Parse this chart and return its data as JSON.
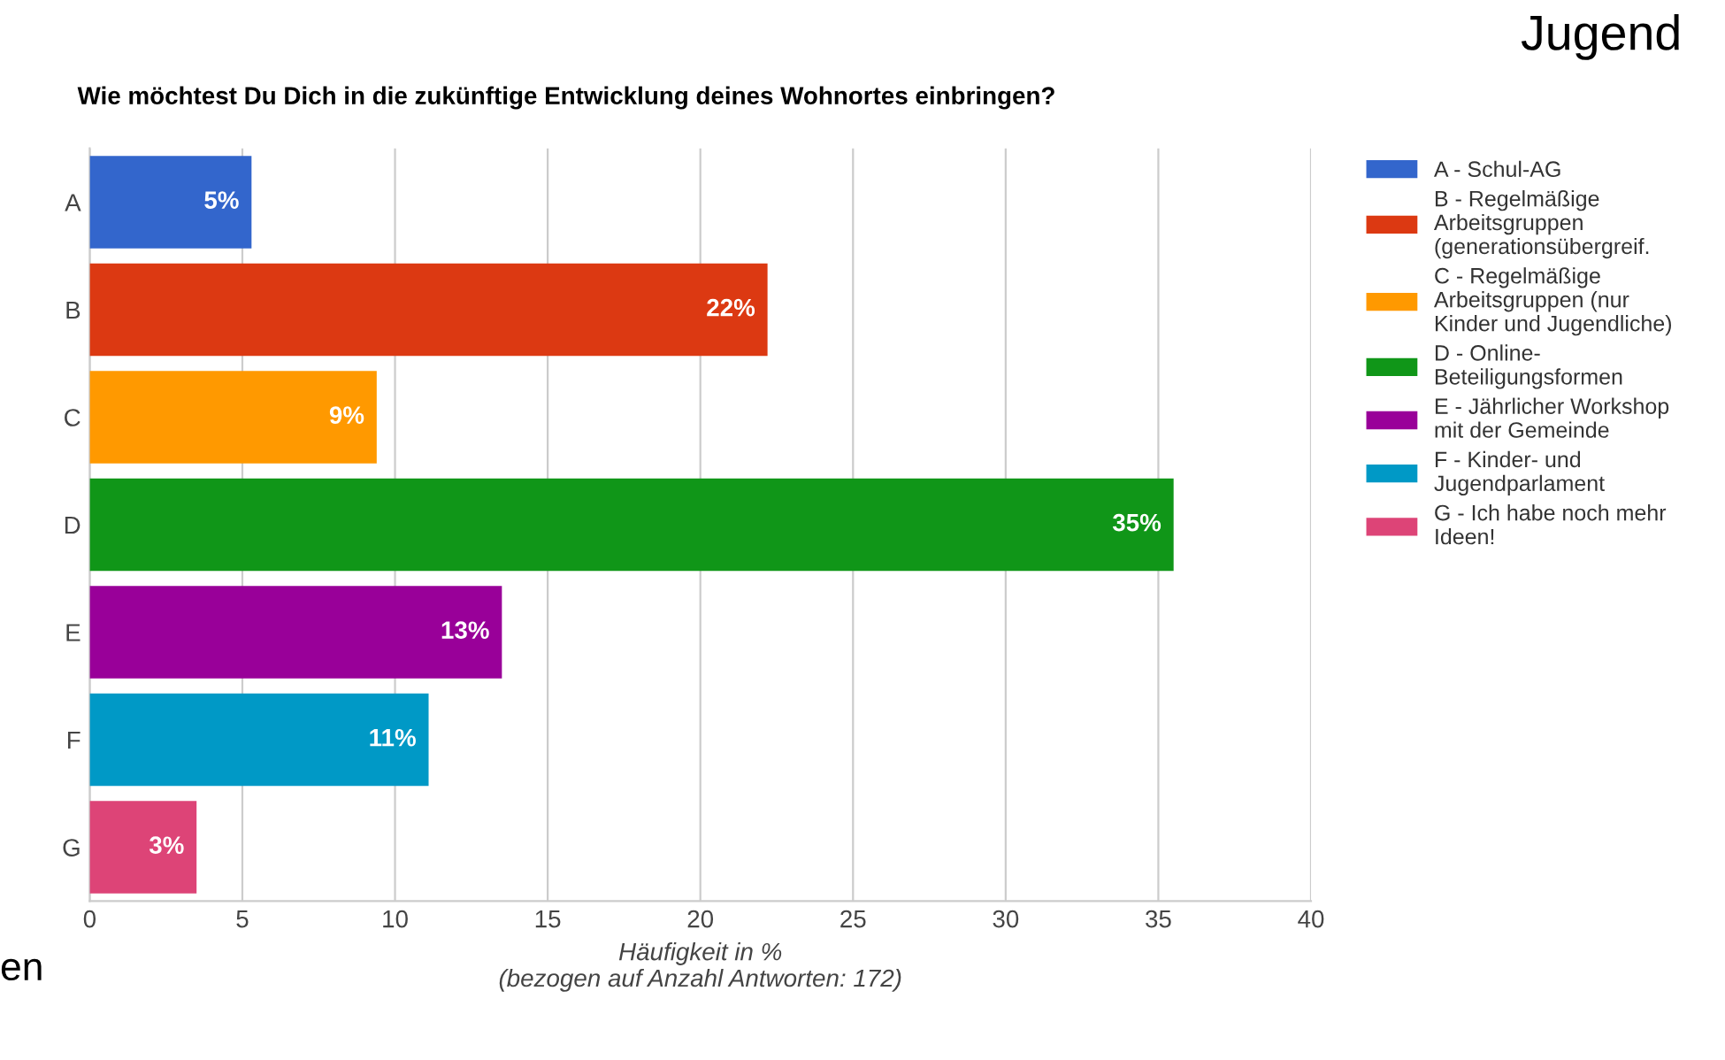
{
  "chart_data": {
    "type": "bar",
    "orientation": "horizontal",
    "title": "Wie möchtest Du Dich in die zukünftige Entwicklung deines Wohnortes einbringen?",
    "categories": [
      "A",
      "B",
      "C",
      "D",
      "E",
      "F",
      "G"
    ],
    "series": [
      {
        "name": "A - Schul-AG",
        "color": "#3366cc",
        "values": [
          5.3,
          null,
          null,
          null,
          null,
          null,
          null
        ],
        "value_labels": [
          "5%",
          null,
          null,
          null,
          null,
          null,
          null
        ]
      },
      {
        "name": "B - Regelmäßige Arbeitsgruppen (generationsübergreif.",
        "color": "#dc3912",
        "values": [
          null,
          22.2,
          null,
          null,
          null,
          null,
          null
        ],
        "value_labels": [
          null,
          "22%",
          null,
          null,
          null,
          null,
          null
        ]
      },
      {
        "name": "C - Regelmäßige Arbeitsgruppen (nur Kinder und Jugendliche)",
        "color": "#ff9900",
        "values": [
          null,
          null,
          9.4,
          null,
          null,
          null,
          null
        ],
        "value_labels": [
          null,
          null,
          "9%",
          null,
          null,
          null,
          null
        ]
      },
      {
        "name": "D - Online-Beteiligungsformen",
        "color": "#109618",
        "values": [
          null,
          null,
          null,
          35.5,
          null,
          null,
          null
        ],
        "value_labels": [
          null,
          null,
          null,
          "35%",
          null,
          null,
          null
        ]
      },
      {
        "name": "E - Jährlicher Workshop mit der Gemeinde",
        "color": "#990099",
        "values": [
          null,
          null,
          null,
          null,
          13.5,
          null,
          null
        ],
        "value_labels": [
          null,
          null,
          null,
          null,
          "13%",
          null,
          null
        ]
      },
      {
        "name": "F - Kinder- und Jugendparlament",
        "color": "#0099c6",
        "values": [
          null,
          null,
          null,
          null,
          null,
          11.1,
          null
        ],
        "value_labels": [
          null,
          null,
          null,
          null,
          null,
          "11%",
          null
        ]
      },
      {
        "name": "G - Ich habe noch mehr Ideen!",
        "color": "#dd4477",
        "values": [
          null,
          null,
          null,
          null,
          null,
          null,
          3.5
        ],
        "value_labels": [
          null,
          null,
          null,
          null,
          null,
          null,
          "3%"
        ]
      }
    ],
    "xlabel": "Häufigkeit in %\n(bezogen auf Anzahl Antworten: 172)",
    "xlim": [
      0,
      40
    ],
    "xticks": [
      0,
      5,
      10,
      15,
      20,
      25,
      30,
      35,
      40
    ],
    "grid": "x",
    "legend": "right",
    "annotations": [
      "Jugend",
      "en"
    ]
  }
}
